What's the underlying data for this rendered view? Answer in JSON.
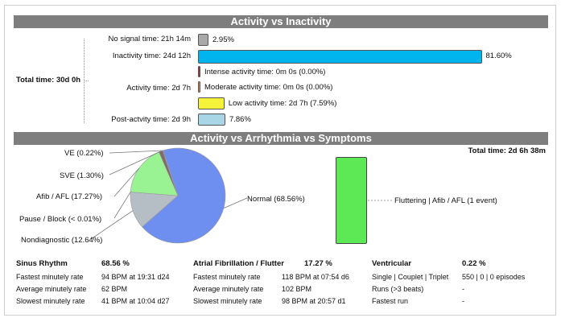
{
  "activity": {
    "title": "Activity vs Inactivity",
    "total_label": "Total time: 30d 0h",
    "rows": [
      {
        "label": "No signal time: 21h 14m",
        "value_label": "2.95%",
        "inline_label": "",
        "percent": 2.95,
        "color": "#a9a9a9"
      },
      {
        "label": "Inactivity time: 24d 12h",
        "value_label": "81.60%",
        "inline_label": "",
        "percent": 81.6,
        "color": "#00b4ee"
      },
      {
        "label": "",
        "value_label": "",
        "inline_label": "Intense activity time: 0m 0s (0.00%)",
        "percent": 0.0,
        "color": "#c0262c"
      },
      {
        "label": "Activity time: 2d 7h",
        "value_label": "",
        "inline_label": "Moderate activity time: 0m 0s (0.00%)",
        "percent": 0.0,
        "color": "#e0874a"
      },
      {
        "label": "",
        "value_label": "",
        "inline_label": "Low activity time: 2d 7h (7.59%)",
        "percent": 7.59,
        "color": "#f5f23a"
      },
      {
        "label": "Post-actvity time: 2d 9h",
        "value_label": "7.86%",
        "inline_label": "",
        "percent": 7.86,
        "color": "#a9d6e6"
      }
    ]
  },
  "arrhythmia": {
    "title": "Activity vs Arrhythmia vs Symptoms",
    "total_label": "Total time: 2d 6h 38m",
    "event_label": "Fluttering | Afib / AFL (1 event)",
    "event_color": "#5de855",
    "chart_data": {
      "type": "pie",
      "slices": [
        {
          "label": "Normal (68.56%)",
          "value": 68.56,
          "color": "#6f8ff0"
        },
        {
          "label": "Nondiagnostic (12.64%)",
          "value": 12.64,
          "color": "#b4bec4"
        },
        {
          "label": "Pause / Block (< 0.01%)",
          "value": 0.01,
          "color": "#cccccc"
        },
        {
          "label": "Afib / AFL (17.27%)",
          "value": 17.27,
          "color": "#9af392"
        },
        {
          "label": "SVE (1.30%)",
          "value": 1.3,
          "color": "#7f6a6e"
        },
        {
          "label": "VE (0.22%)",
          "value": 0.22,
          "color": "#444444"
        }
      ]
    }
  },
  "stats": {
    "sinus": {
      "title": "Sinus Rhythm",
      "title_value": "68.56 %",
      "rows": [
        {
          "label": "Fastest minutely rate",
          "value": "94 BPM at 19:31 d24"
        },
        {
          "label": "Average minutely rate",
          "value": "62 BPM"
        },
        {
          "label": "Slowest minutely rate",
          "value": "41 BPM at 10:04 d27"
        }
      ]
    },
    "afib": {
      "title": "Atrial Fibrillation / Flutter",
      "title_value": "17.27 %",
      "rows": [
        {
          "label": "Fastest minutely rate",
          "value": "118 BPM at 07:54 d6"
        },
        {
          "label": "Average minutely rate",
          "value": "102 BPM"
        },
        {
          "label": "Slowest minutely rate",
          "value": "98 BPM at 20:57 d1"
        }
      ]
    },
    "ventricular": {
      "title": "Ventricular",
      "title_value": "0.22 %",
      "rows": [
        {
          "label": "Single | Couplet | Triplet",
          "value": "550 | 0 | 0 episodes"
        },
        {
          "label": "Runs (>3 beats)",
          "value": "-"
        },
        {
          "label": "Fastest run",
          "value": "-"
        }
      ]
    }
  }
}
